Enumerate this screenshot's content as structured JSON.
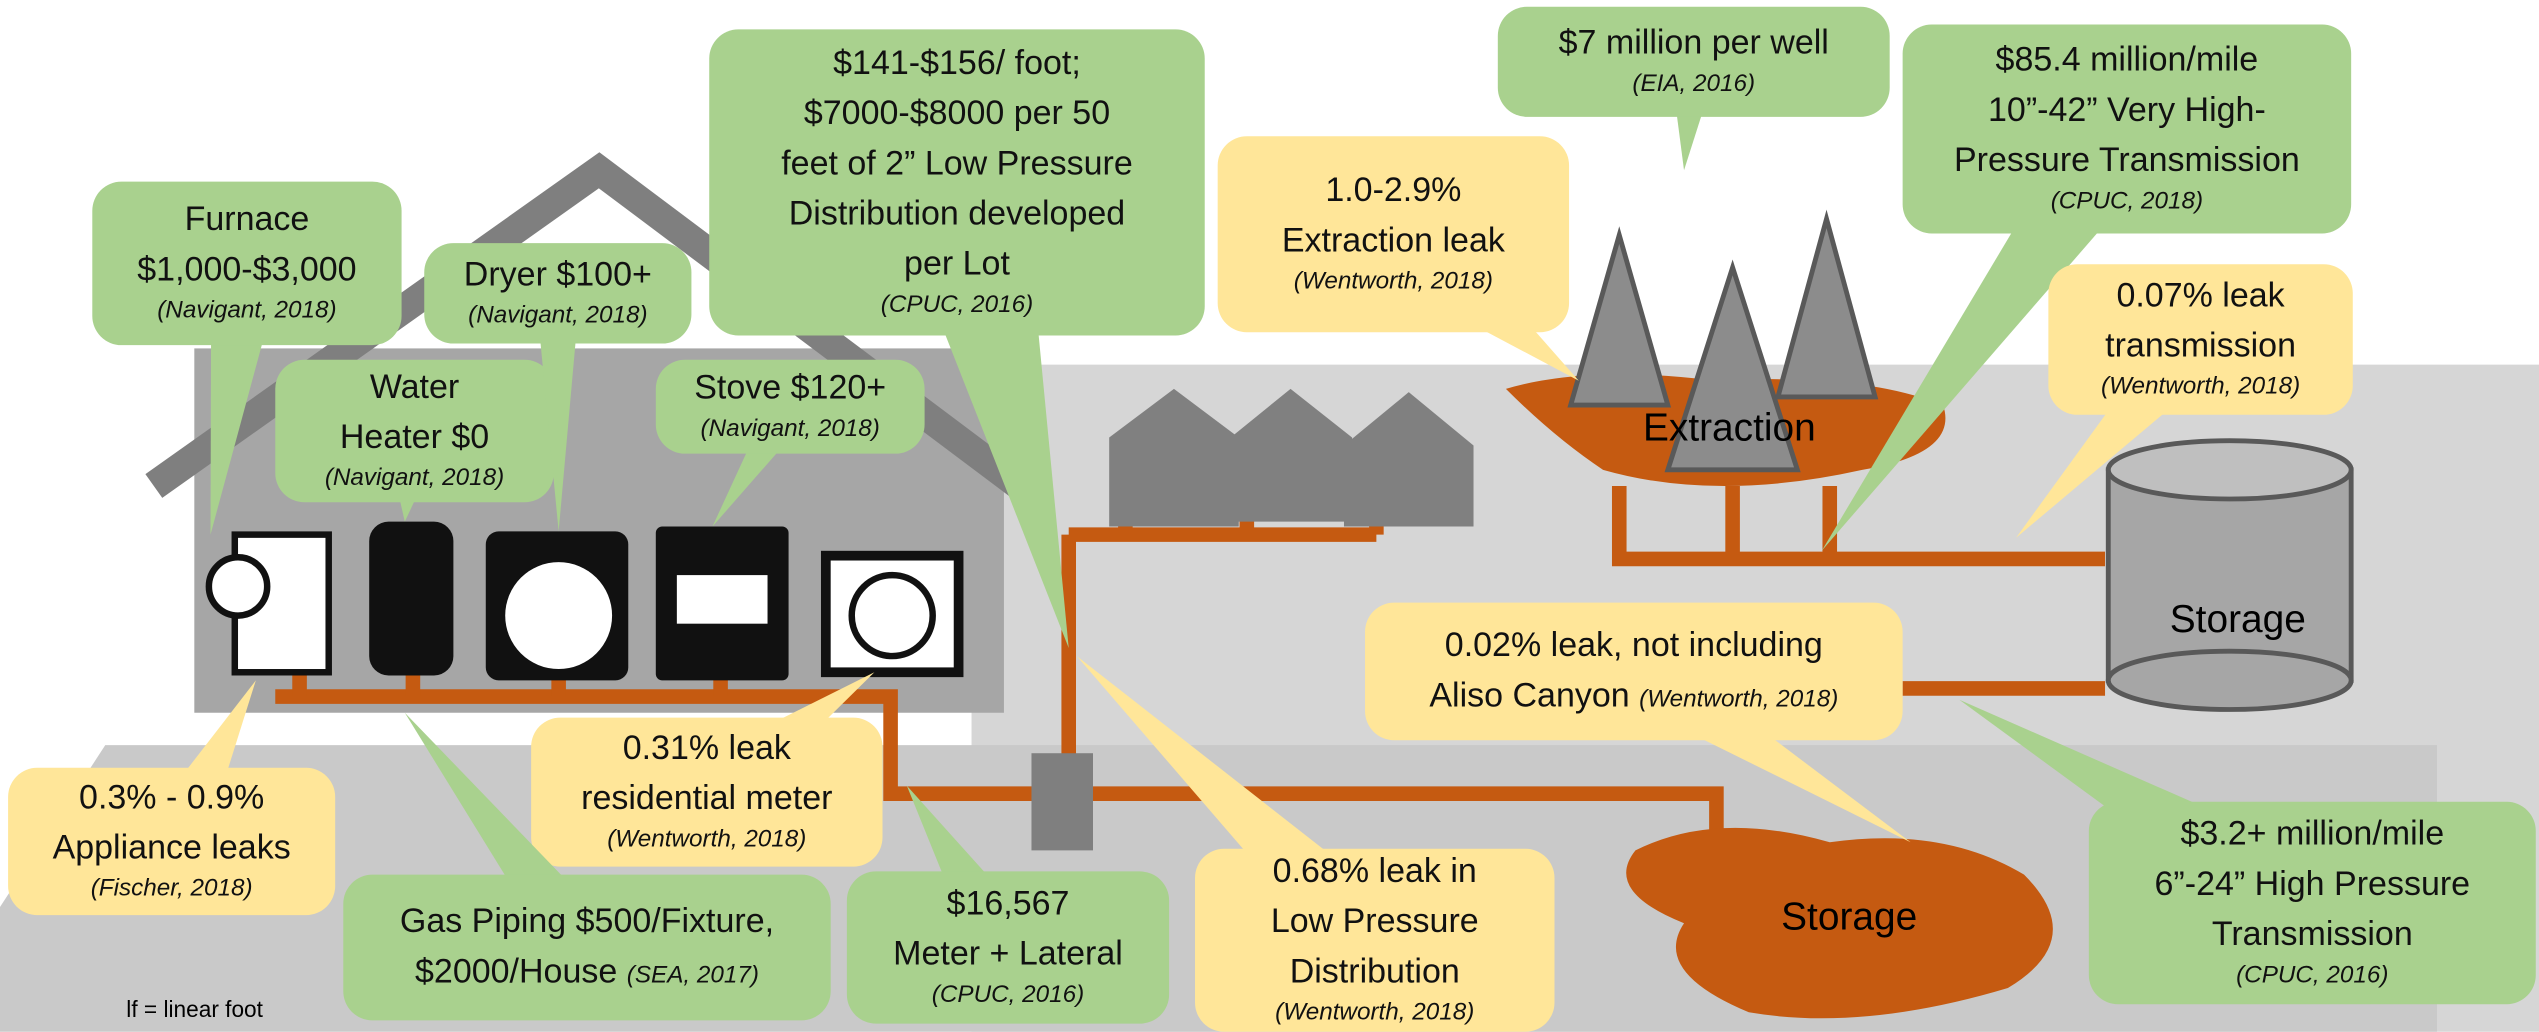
{
  "labels": {
    "extraction": "Extraction",
    "storage_tank": "Storage",
    "storage_field": "Storage",
    "note": "lf = linear foot"
  },
  "callouts": [
    {
      "lines": [
        "Furnace",
        "$1,000-$3,000"
      ],
      "cite": "(Navigant, 2018)",
      "color": "#a9d18e"
    },
    {
      "lines": [
        "Water",
        "Heater $0"
      ],
      "cite": "(Navigant, 2018)",
      "color": "#a9d18e"
    },
    {
      "lines": [
        "Dryer $100+"
      ],
      "cite": "(Navigant, 2018)",
      "color": "#a9d18e"
    },
    {
      "lines": [
        "Stove $120+"
      ],
      "cite": "(Navigant, 2018)",
      "color": "#a9d18e"
    },
    {
      "lines": [
        "$141-$156/ foot;",
        "$7000-$8000 per 50",
        "feet of 2” Low Pressure",
        "Distribution developed",
        "per Lot"
      ],
      "cite": "(CPUC, 2016)",
      "color": "#a9d18e"
    },
    {
      "lines": [
        "1.0-2.9%",
        "Extraction leak"
      ],
      "cite": "(Wentworth, 2018)",
      "color": "#ffe699"
    },
    {
      "lines": [
        "$7 million per well"
      ],
      "cite": "(EIA, 2016)",
      "color": "#a9d18e"
    },
    {
      "lines": [
        "$85.4 million/mile",
        "10”-42” Very High-",
        "Pressure Transmission"
      ],
      "cite": "(CPUC, 2018)",
      "color": "#a9d18e"
    },
    {
      "lines": [
        "0.07% leak",
        "transmission"
      ],
      "cite": "(Wentworth, 2018)",
      "color": "#ffe699"
    },
    {
      "lines": [
        "0.02% leak, not including",
        "Aliso Canyon"
      ],
      "cite": "(Wentworth, 2018)",
      "cite_inline": true,
      "color": "#ffe699"
    },
    {
      "lines": [
        "$3.2+ million/mile",
        "6”-24” High Pressure",
        "Transmission"
      ],
      "cite": "(CPUC, 2016)",
      "color": "#a9d18e"
    },
    {
      "lines": [
        "0.3% - 0.9%",
        "Appliance leaks"
      ],
      "cite": "(Fischer, 2018)",
      "color": "#ffe699"
    },
    {
      "lines": [
        "0.31% leak",
        "residential meter"
      ],
      "cite": "(Wentworth, 2018)",
      "color": "#ffe699"
    },
    {
      "lines": [
        "Gas Piping $500/Fixture,",
        "$2000/House"
      ],
      "cite": "(SEA, 2017)",
      "cite_inline": true,
      "color": "#a9d18e"
    },
    {
      "lines": [
        "$16,567",
        "Meter + Lateral"
      ],
      "cite": "(CPUC, 2016)",
      "color": "#a9d18e"
    },
    {
      "lines": [
        "0.68% leak in",
        "Low Pressure",
        "Distribution"
      ],
      "cite": "(Wentworth, 2018)",
      "color": "#ffe699"
    }
  ]
}
